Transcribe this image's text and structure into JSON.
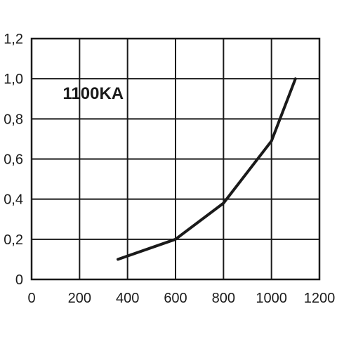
{
  "chart_data": {
    "type": "line",
    "title": "",
    "xlabel": "",
    "ylabel": "",
    "xlim": [
      0,
      1200
    ],
    "ylim": [
      0,
      1.2
    ],
    "x_ticks": [
      0,
      200,
      400,
      600,
      800,
      1000,
      1200
    ],
    "x_tick_labels": [
      "0",
      "200",
      "400",
      "600",
      "800",
      "1000",
      "1200"
    ],
    "y_ticks": [
      0,
      0.2,
      0.4,
      0.6,
      0.8,
      1.0,
      1.2
    ],
    "y_tick_labels": [
      "0",
      "0,2",
      "0,4",
      "0,6",
      "0,8",
      "1,0",
      "1,2"
    ],
    "grid": true,
    "annotations": [
      {
        "text": "1100KA",
        "x": 130,
        "y": 0.9
      }
    ],
    "series": [
      {
        "color": "#1a1a1a",
        "x": [
          360,
          600,
          800,
          1000,
          1100
        ],
        "y": [
          0.1,
          0.2,
          0.38,
          0.69,
          1.0
        ]
      }
    ]
  }
}
